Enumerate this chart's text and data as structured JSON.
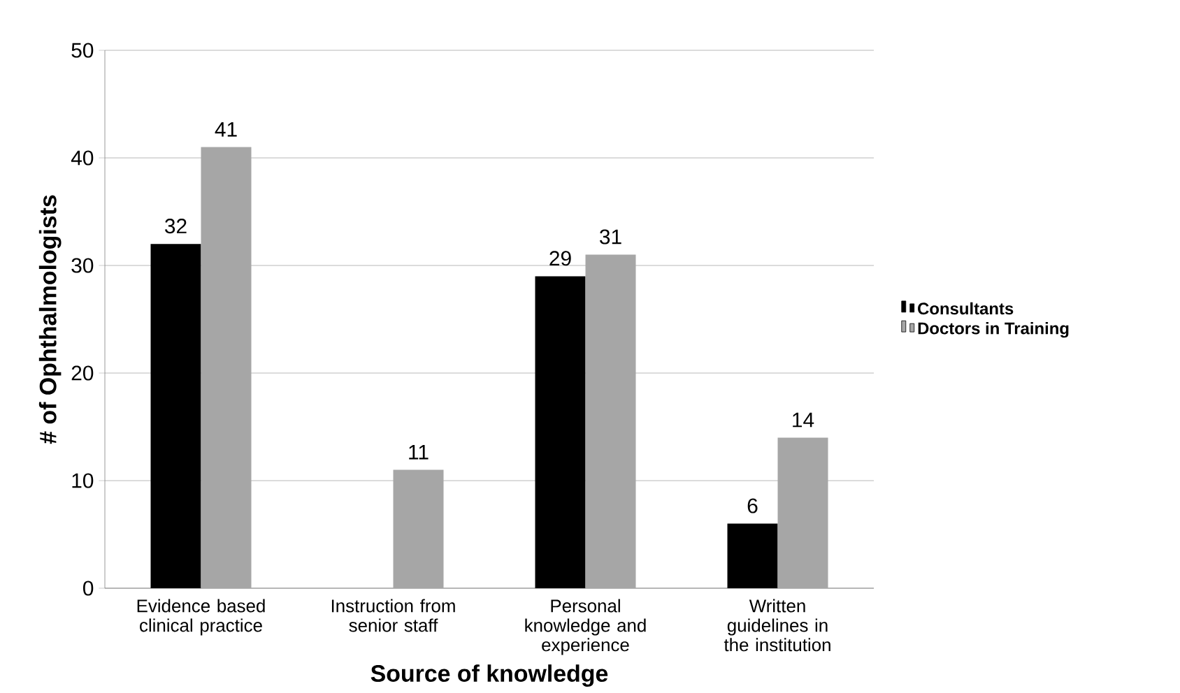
{
  "chart_data": {
    "type": "bar",
    "xlabel": "Source of knowledge",
    "ylabel": "# of Ophthalmologists",
    "categories": [
      "Evidence based clinical practice",
      "Instruction from senior staff",
      "Personal knowledge and experience",
      "Written guidelines in the institution"
    ],
    "series": [
      {
        "name": "Consultants",
        "color": "#000000",
        "values": [
          32,
          null,
          29,
          6
        ],
        "value_labels": [
          "32",
          null,
          "29",
          "6"
        ]
      },
      {
        "name": "Doctors in Training",
        "color": "#a6a6a6",
        "values": [
          41,
          11,
          31,
          14
        ],
        "value_labels": [
          "41",
          "11",
          "31",
          "14"
        ]
      }
    ],
    "ylim": [
      0,
      50
    ],
    "yticks": [
      0,
      10,
      20,
      30,
      40,
      50
    ],
    "grid": "y",
    "legend": "right"
  }
}
